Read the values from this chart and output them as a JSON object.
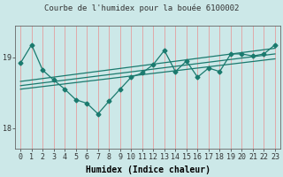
{
  "title": "Courbe de l'humidex pour la bouée 6100002",
  "xlabel": "Humidex (Indice chaleur)",
  "bg_color": "#cce8e8",
  "line_color": "#1a7a6e",
  "grid_color": "#e89090",
  "xlim": [
    -0.5,
    23.5
  ],
  "ylim": [
    17.7,
    19.45
  ],
  "yticks": [
    18,
    19
  ],
  "xticks": [
    0,
    1,
    2,
    3,
    4,
    5,
    6,
    7,
    8,
    9,
    10,
    11,
    12,
    13,
    14,
    15,
    16,
    17,
    18,
    19,
    20,
    21,
    22,
    23
  ],
  "main_x": [
    0,
    1,
    2,
    3,
    4,
    5,
    6,
    7,
    8,
    9,
    10,
    11,
    12,
    13,
    14,
    15,
    16,
    17,
    18,
    19,
    20,
    21,
    22,
    23
  ],
  "main_y": [
    18.92,
    19.18,
    18.82,
    18.68,
    18.55,
    18.4,
    18.35,
    18.2,
    18.38,
    18.55,
    18.72,
    18.78,
    18.9,
    19.1,
    18.8,
    18.95,
    18.72,
    18.85,
    18.8,
    19.05,
    19.05,
    19.02,
    19.05,
    19.18
  ],
  "trend1_x": [
    0,
    23
  ],
  "trend1_y": [
    18.6,
    19.05
  ],
  "trend2_x": [
    0,
    23
  ],
  "trend2_y": [
    18.66,
    19.13
  ],
  "trend3_x": [
    0,
    23
  ],
  "trend3_y": [
    18.55,
    18.98
  ],
  "linewidth": 0.9,
  "marker_size": 2.5,
  "title_fontsize": 6.5,
  "axis_fontsize": 7,
  "tick_fontsize": 6
}
